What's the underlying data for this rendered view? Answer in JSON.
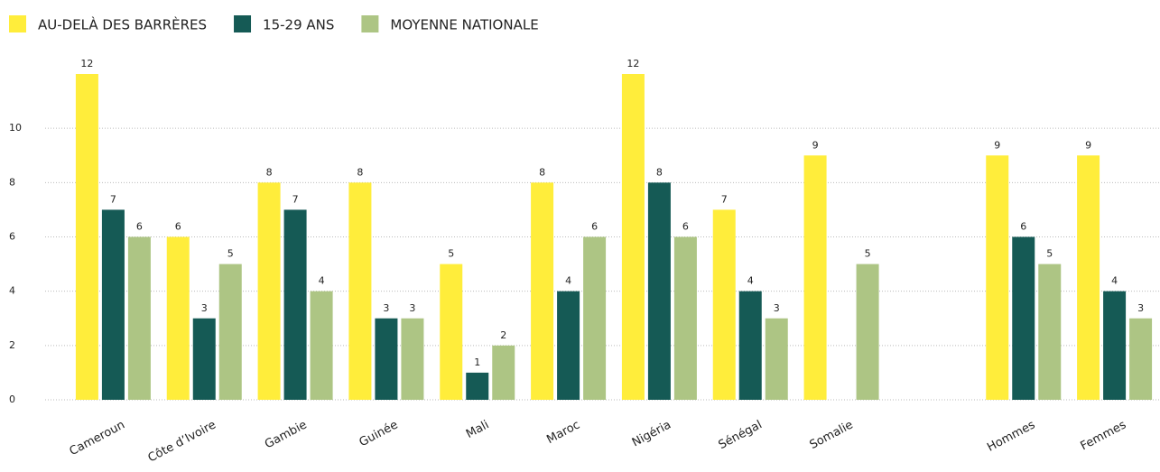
{
  "chart_data": {
    "type": "bar",
    "categories": [
      "Cameroun",
      "Côte d’Ivoire",
      "Gambie",
      "Guinée",
      "Mali",
      "Maroc",
      "Nigéria",
      "Sénégal",
      "Somalie",
      null,
      "Hommes",
      "Femmes"
    ],
    "series": [
      {
        "name": "AU-DELÀ DES BARRÈRES",
        "color": "#ffed3b",
        "values": [
          12,
          6,
          8,
          8,
          5,
          8,
          12,
          7,
          9,
          null,
          9,
          9
        ]
      },
      {
        "name": "15-29 ANS",
        "color": "#155a55",
        "values": [
          7,
          3,
          7,
          3,
          1,
          4,
          8,
          4,
          null,
          null,
          6,
          4
        ]
      },
      {
        "name": "MOYENNE NATIONALE",
        "color": "#adc584",
        "values": [
          6,
          5,
          4,
          3,
          2,
          6,
          6,
          3,
          5,
          null,
          5,
          3
        ]
      }
    ],
    "ylim": [
      0,
      12
    ],
    "yticks": [
      0,
      2,
      4,
      6,
      8,
      10
    ],
    "grid": true,
    "legend": "top"
  }
}
